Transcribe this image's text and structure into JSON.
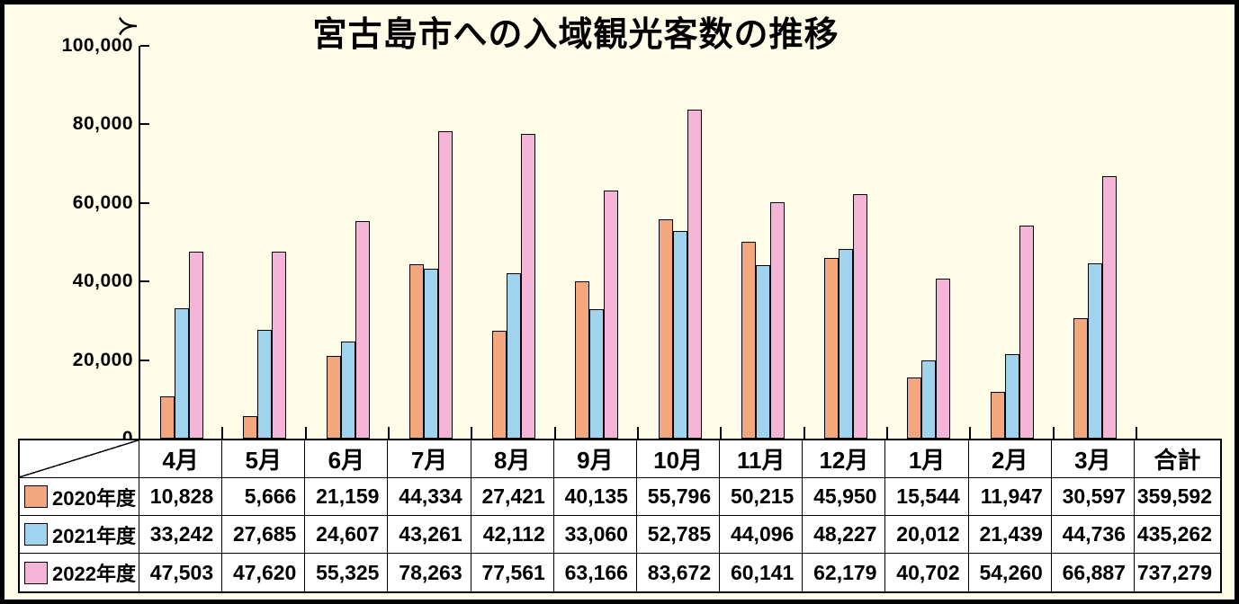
{
  "chart_data": {
    "type": "bar",
    "title": "宮古島市への入域観光客数の推移",
    "y_axis_unit": "人",
    "ylim": [
      0,
      100000
    ],
    "y_ticks": [
      0,
      20000,
      40000,
      60000,
      80000,
      100000
    ],
    "grid": false,
    "legend_position": "table-left-column",
    "categories": [
      "4月",
      "5月",
      "6月",
      "7月",
      "8月",
      "9月",
      "10月",
      "11月",
      "12月",
      "1月",
      "2月",
      "3月"
    ],
    "series": [
      {
        "name": "2020年度",
        "color": "#F2A77C",
        "values": [
          10828,
          5666,
          21159,
          44334,
          27421,
          40135,
          55796,
          50215,
          45950,
          15544,
          11947,
          30597
        ],
        "total": 359592
      },
      {
        "name": "2021年度",
        "color": "#A0D3EE",
        "values": [
          33242,
          27685,
          24607,
          43261,
          42112,
          33060,
          52785,
          44096,
          48227,
          20012,
          21439,
          44736
        ],
        "total": 435262
      },
      {
        "name": "2022年度",
        "color": "#F4B5D8",
        "values": [
          47503,
          47620,
          55325,
          78263,
          77561,
          63166,
          83672,
          60141,
          62179,
          40702,
          54260,
          66887
        ],
        "total": 737279
      }
    ]
  },
  "table": {
    "total_header": "合計"
  },
  "colors": {
    "background": "#FFFDE8",
    "table_background": "#FFFFFF",
    "line": "#000000"
  }
}
